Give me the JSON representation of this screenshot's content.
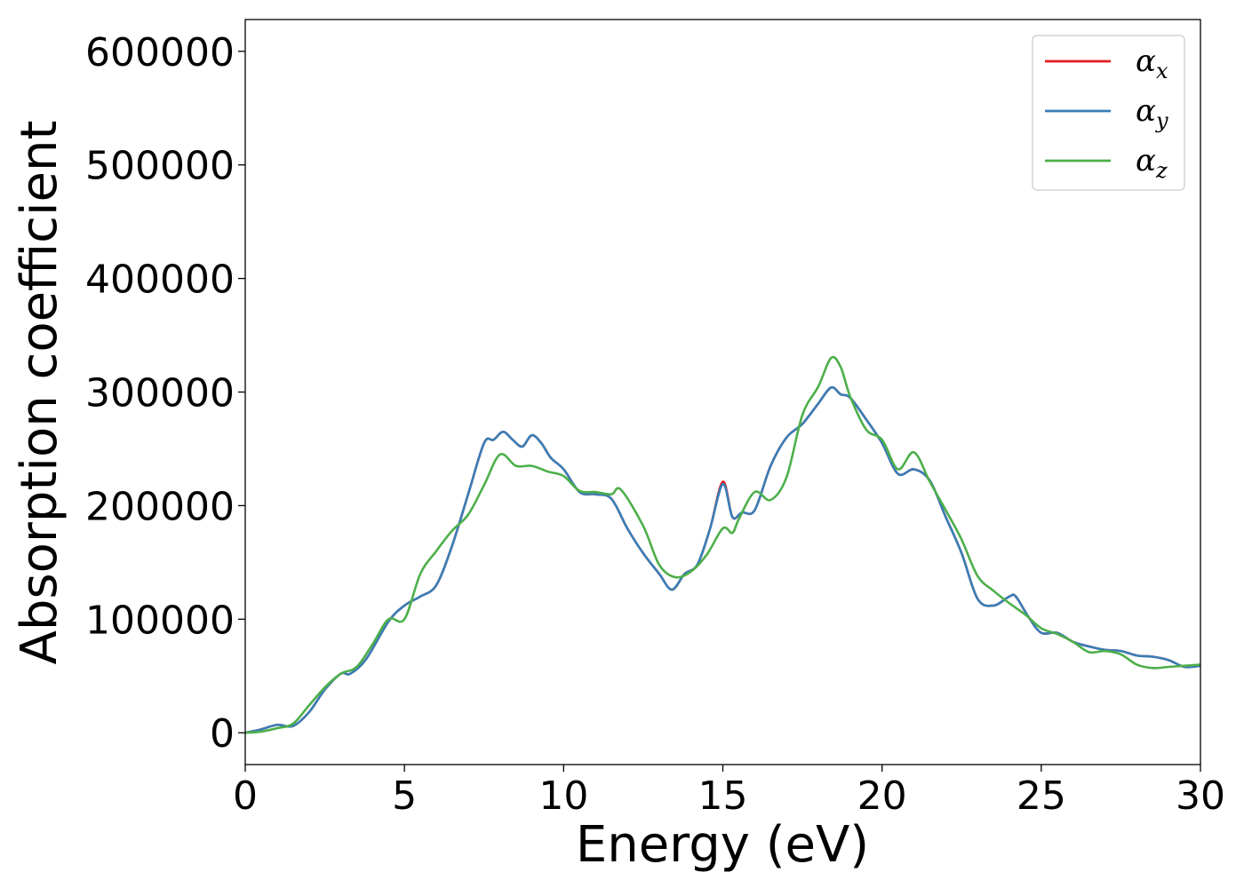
{
  "chart_data": {
    "type": "line",
    "title": "",
    "xlabel": "Energy (eV)",
    "ylabel": "Absorption coefficient",
    "xlim": [
      0,
      30
    ],
    "ylim": [
      -28000,
      628000
    ],
    "xticks": [
      0,
      5,
      10,
      15,
      20,
      25,
      30
    ],
    "yticks": [
      0,
      100000,
      200000,
      300000,
      400000,
      500000,
      600000
    ],
    "grid": false,
    "legend_position": "top-right",
    "series": [
      {
        "name": "α_x",
        "symbol": "α",
        "subscript": "x",
        "color": "#e41a1c",
        "x": [
          0,
          0.5,
          1,
          1.5,
          2,
          2.5,
          3,
          3.3,
          3.8,
          4.5,
          5,
          5.5,
          6,
          6.5,
          7,
          7.5,
          7.8,
          8.1,
          8.4,
          8.7,
          9,
          9.3,
          9.6,
          10,
          10.5,
          11,
          11.5,
          12,
          12.5,
          13,
          13.4,
          13.8,
          14.2,
          14.6,
          15,
          15.3,
          15.6,
          16,
          16.5,
          17,
          17.5,
          18,
          18.4,
          18.7,
          19,
          19.5,
          20,
          20.5,
          21,
          21.5,
          22,
          22.5,
          23,
          23.5,
          24,
          24.2,
          24.6,
          25,
          25.5,
          26,
          26.5,
          27,
          27.5,
          28,
          28.5,
          29,
          29.5,
          30
        ],
        "y": [
          0,
          3000,
          7000,
          6000,
          18000,
          38000,
          52000,
          52000,
          65000,
          98000,
          112000,
          120000,
          130000,
          165000,
          210000,
          255000,
          258000,
          265000,
          258000,
          252000,
          262000,
          255000,
          242000,
          232000,
          212000,
          210000,
          206000,
          180000,
          158000,
          140000,
          126000,
          140000,
          148000,
          180000,
          221000,
          190000,
          194000,
          196000,
          235000,
          260000,
          272000,
          290000,
          304000,
          298000,
          295000,
          276000,
          255000,
          228000,
          232000,
          222000,
          190000,
          158000,
          118000,
          112000,
          120000,
          120000,
          102000,
          88000,
          88000,
          80000,
          76000,
          73000,
          72000,
          68000,
          67000,
          64000,
          58000,
          59000
        ]
      },
      {
        "name": "α_y",
        "symbol": "α",
        "subscript": "y",
        "color": "#377eb8",
        "x": [
          0,
          0.5,
          1,
          1.5,
          2,
          2.5,
          3,
          3.3,
          3.8,
          4.5,
          5,
          5.5,
          6,
          6.5,
          7,
          7.5,
          7.8,
          8.1,
          8.4,
          8.7,
          9,
          9.3,
          9.6,
          10,
          10.5,
          11,
          11.5,
          12,
          12.5,
          13,
          13.4,
          13.8,
          14.2,
          14.6,
          15,
          15.3,
          15.6,
          16,
          16.5,
          17,
          17.5,
          18,
          18.4,
          18.7,
          19,
          19.5,
          20,
          20.5,
          21,
          21.5,
          22,
          22.5,
          23,
          23.5,
          24,
          24.2,
          24.6,
          25,
          25.5,
          26,
          26.5,
          27,
          27.5,
          28,
          28.5,
          29,
          29.5,
          30
        ],
        "y": [
          0,
          3000,
          7000,
          6000,
          18000,
          38000,
          52000,
          52000,
          65000,
          98000,
          112000,
          120000,
          130000,
          165000,
          210000,
          255000,
          258000,
          265000,
          258000,
          252000,
          262000,
          255000,
          242000,
          232000,
          212000,
          210000,
          206000,
          180000,
          158000,
          140000,
          126000,
          140000,
          148000,
          180000,
          219000,
          190000,
          194000,
          196000,
          235000,
          260000,
          272000,
          290000,
          304000,
          298000,
          295000,
          276000,
          255000,
          228000,
          232000,
          222000,
          190000,
          158000,
          118000,
          112000,
          120000,
          120000,
          102000,
          88000,
          88000,
          80000,
          76000,
          73000,
          72000,
          68000,
          67000,
          64000,
          58000,
          59000
        ]
      },
      {
        "name": "α_z",
        "symbol": "α",
        "subscript": "z",
        "color": "#4daf4a",
        "x": [
          0,
          0.5,
          1,
          1.5,
          2,
          2.5,
          3,
          3.5,
          4,
          4.5,
          5,
          5.5,
          6,
          6.5,
          7,
          7.5,
          8,
          8.5,
          9,
          9.5,
          10,
          10.5,
          11,
          11.5,
          11.8,
          12.5,
          13,
          13.5,
          14,
          14.5,
          15,
          15.3,
          15.5,
          16,
          16.5,
          17,
          17.5,
          18,
          18.4,
          18.7,
          19,
          19.5,
          20,
          20.5,
          21,
          21.5,
          22,
          22.5,
          23,
          23.5,
          24,
          24.5,
          25,
          25.5,
          26,
          26.5,
          27,
          27.5,
          28,
          28.5,
          29,
          29.5,
          30
        ],
        "y": [
          0,
          1000,
          4000,
          8000,
          24000,
          40000,
          52000,
          58000,
          78000,
          100000,
          100000,
          140000,
          160000,
          178000,
          192000,
          218000,
          245000,
          235000,
          235000,
          230000,
          226000,
          213000,
          212000,
          210000,
          214000,
          182000,
          148000,
          137000,
          142000,
          157000,
          180000,
          176000,
          188000,
          212000,
          205000,
          225000,
          280000,
          305000,
          330000,
          322000,
          296000,
          267000,
          258000,
          232000,
          247000,
          221000,
          196000,
          170000,
          138000,
          125000,
          114000,
          104000,
          92000,
          87000,
          80000,
          71000,
          72000,
          69000,
          60000,
          57000,
          58000,
          59000,
          60000
        ]
      }
    ]
  }
}
